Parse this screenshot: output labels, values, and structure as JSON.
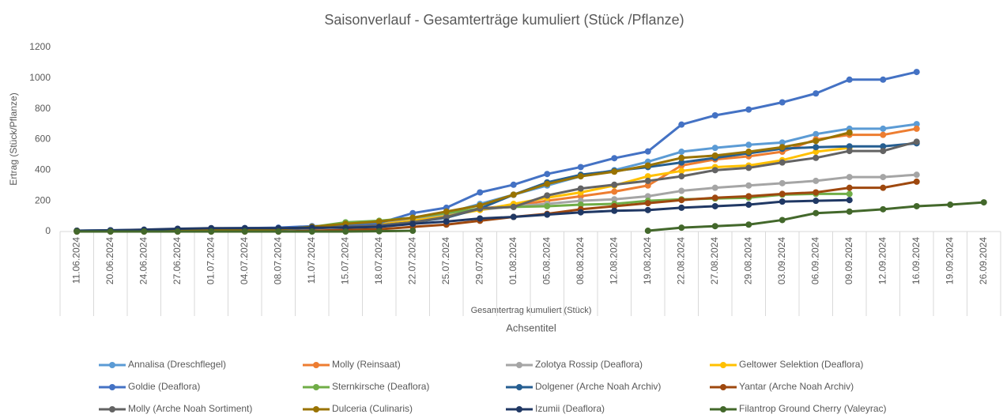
{
  "chart_data": {
    "type": "line",
    "title": "Saisonverlauf  - Gesamterträge kumuliert (Stück /Pflanze)",
    "y_label": "Ertrag (Stück/Pflanze)",
    "x_label": "Gesamtertrag kumuliert (Stück)",
    "x_axis_title": "Achsentitel",
    "categories": [
      "11.06.2024",
      "20.06.2024",
      "24.06.2024",
      "27.06.2024",
      "01.07.2024",
      "04.07.2024",
      "08.07.2024",
      "11.07.2024",
      "15.07.2024",
      "18.07.2024",
      "22.07.2024",
      "25.07.2024",
      "29.07.2024",
      "01.08.2024",
      "05.08.2024",
      "08.08.2024",
      "12.08.2024",
      "19.08.2024",
      "22.08.2024",
      "27.08.2024",
      "29.08.2024",
      "03.09.2024",
      "06.09.2024",
      "09.09.2024",
      "12.09.2024",
      "16.09.2024",
      "19.09.2024",
      "26.09.2024"
    ],
    "ylim": [
      0,
      1200
    ],
    "yticks": [
      0,
      200,
      400,
      600,
      800,
      1000,
      1200
    ],
    "grid": false,
    "series": [
      {
        "name": "Annalisa (Dreschflegel)",
        "color": "#5b9bd5",
        "values": [
          5,
          8,
          10,
          15,
          20,
          22,
          22,
          30,
          35,
          50,
          80,
          120,
          180,
          240,
          300,
          360,
          400,
          455,
          520,
          545,
          565,
          580,
          635,
          670,
          670,
          700,
          null,
          null
        ]
      },
      {
        "name": "Molly (Reinsaat)",
        "color": "#ed7d31",
        "values": [
          5,
          5,
          8,
          10,
          15,
          18,
          18,
          25,
          30,
          40,
          60,
          100,
          150,
          170,
          200,
          230,
          260,
          300,
          430,
          470,
          490,
          520,
          600,
          630,
          630,
          670,
          null,
          null
        ]
      },
      {
        "name": "Zolotya Rossip (Deaflora)",
        "color": "#a5a5a5",
        "values": [
          5,
          5,
          8,
          10,
          12,
          15,
          15,
          25,
          35,
          50,
          80,
          110,
          140,
          165,
          180,
          200,
          210,
          230,
          265,
          285,
          300,
          315,
          330,
          355,
          355,
          370,
          null,
          null
        ]
      },
      {
        "name": "Geltower Selektion (Deaflora)",
        "color": "#ffc000",
        "values": [
          5,
          5,
          8,
          10,
          12,
          15,
          15,
          25,
          35,
          45,
          70,
          100,
          140,
          180,
          220,
          255,
          300,
          360,
          395,
          420,
          430,
          465,
          520,
          545,
          null,
          null,
          null,
          null
        ]
      },
      {
        "name": "Goldie (Deaflora)",
        "color": "#4472c4",
        "values": [
          5,
          8,
          10,
          15,
          20,
          22,
          25,
          35,
          40,
          55,
          120,
          155,
          255,
          305,
          375,
          420,
          478,
          522,
          697,
          757,
          795,
          842,
          900,
          990,
          990,
          1040,
          null,
          null
        ]
      },
      {
        "name": "Sternkirsche (Deaflora)",
        "color": "#70ad47",
        "values": [
          5,
          5,
          8,
          10,
          12,
          15,
          15,
          30,
          60,
          70,
          90,
          120,
          150,
          160,
          165,
          175,
          180,
          200,
          210,
          215,
          220,
          240,
          245,
          245,
          null,
          null,
          null,
          null
        ]
      },
      {
        "name": "Dolgener (Arche Noah Archiv)",
        "color": "#255e91",
        "values": [
          5,
          5,
          8,
          10,
          12,
          15,
          15,
          25,
          30,
          40,
          60,
          90,
          150,
          240,
          320,
          370,
          395,
          420,
          450,
          480,
          510,
          540,
          550,
          555,
          555,
          575,
          null,
          null
        ]
      },
      {
        "name": "Yantar (Arche Noah Archiv)",
        "color": "#9e480e",
        "values": [
          0,
          0,
          0,
          0,
          0,
          0,
          0,
          5,
          10,
          15,
          30,
          45,
          70,
          95,
          115,
          145,
          165,
          185,
          205,
          220,
          230,
          245,
          255,
          285,
          285,
          325,
          null,
          null
        ]
      },
      {
        "name": "Molly (Arche Noah Sortiment)",
        "color": "#636363",
        "values": [
          5,
          5,
          8,
          10,
          12,
          15,
          15,
          20,
          30,
          40,
          60,
          95,
          150,
          160,
          235,
          280,
          305,
          330,
          360,
          400,
          415,
          450,
          480,
          525,
          525,
          585,
          null,
          null
        ]
      },
      {
        "name": "Dulceria (Culinaris)",
        "color": "#997300",
        "values": [
          5,
          5,
          8,
          10,
          12,
          15,
          15,
          30,
          50,
          65,
          90,
          130,
          170,
          240,
          310,
          360,
          390,
          430,
          480,
          495,
          520,
          550,
          590,
          645,
          null,
          null,
          null,
          null
        ]
      },
      {
        "name": "Izumii (Deaflora)",
        "color": "#203864",
        "values": [
          5,
          8,
          12,
          18,
          22,
          22,
          22,
          25,
          25,
          30,
          50,
          65,
          85,
          95,
          110,
          125,
          135,
          140,
          155,
          165,
          175,
          195,
          200,
          205,
          null,
          null,
          null,
          null
        ]
      },
      {
        "name": "Filantrop Ground Cherry (Valeyrac)",
        "color": "#43682b",
        "values": [
          0,
          0,
          0,
          0,
          0,
          0,
          0,
          0,
          0,
          2,
          5,
          null,
          null,
          null,
          null,
          null,
          null,
          5,
          25,
          35,
          45,
          75,
          120,
          130,
          145,
          165,
          175,
          190
        ]
      }
    ]
  }
}
